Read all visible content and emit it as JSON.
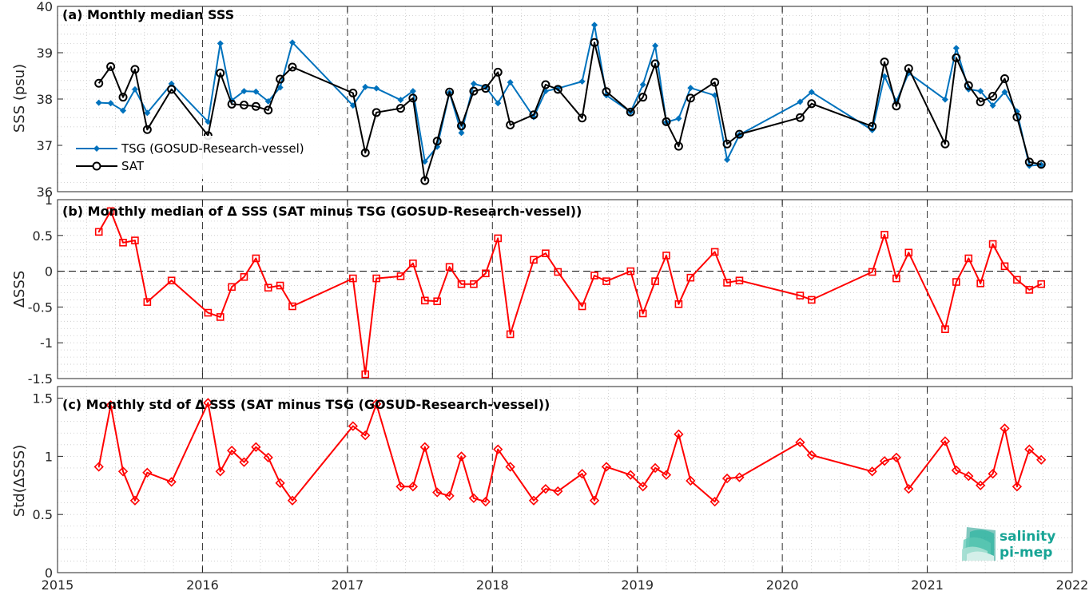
{
  "logo": {
    "line1": "salinity",
    "line2": "pi-mep"
  },
  "chart_data": [
    {
      "type": "line",
      "title": "(a) Monthly median SSS",
      "ylabel": "SSS (psu)",
      "xlim": [
        "2015-01-01",
        "2022-01-01"
      ],
      "ylim": [
        36,
        40
      ],
      "yticks": [
        "36",
        "37",
        "38",
        "39",
        "40"
      ],
      "xticks": [
        "2015",
        "2016",
        "2017",
        "2018",
        "2019",
        "2020",
        "2021",
        "2022"
      ],
      "grid": "minor-dotted",
      "legend_position": "lower-left",
      "series": [
        {
          "name": "TSG (GOSUD-Research-vessel)",
          "color": "#0072BD",
          "marker": "diamond-filled",
          "points": [
            [
              "2015-04-15",
              37.92
            ],
            [
              "2015-05-15",
              37.91
            ],
            [
              "2015-06-15",
              37.75
            ],
            [
              "2015-07-15",
              38.21
            ],
            [
              "2015-08-15",
              37.7
            ],
            [
              "2015-10-15",
              38.33
            ],
            [
              "2016-01-15",
              37.51
            ],
            [
              "2016-02-15",
              39.2
            ],
            [
              "2016-03-15",
              37.97
            ],
            [
              "2016-04-15",
              38.17
            ],
            [
              "2016-05-15",
              38.16
            ],
            [
              "2016-06-15",
              37.95
            ],
            [
              "2016-07-15",
              38.25
            ],
            [
              "2016-08-15",
              39.22
            ],
            [
              "2017-01-15",
              37.86
            ],
            [
              "2017-02-15",
              38.26
            ],
            [
              "2017-03-15",
              38.23
            ],
            [
              "2017-05-15",
              37.98
            ],
            [
              "2017-06-15",
              38.17
            ],
            [
              "2017-07-15",
              36.65
            ],
            [
              "2017-08-15",
              36.97
            ],
            [
              "2017-09-15",
              38.14
            ],
            [
              "2017-10-15",
              37.27
            ],
            [
              "2017-11-15",
              38.33
            ],
            [
              "2017-12-15",
              38.26
            ],
            [
              "2018-01-15",
              37.91
            ],
            [
              "2018-02-15",
              38.36
            ],
            [
              "2018-04-15",
              37.61
            ],
            [
              "2018-05-15",
              38.17
            ],
            [
              "2018-06-15",
              38.23
            ],
            [
              "2018-08-15",
              38.38
            ],
            [
              "2018-09-15",
              39.6
            ],
            [
              "2018-10-15",
              38.08
            ],
            [
              "2018-12-15",
              37.72
            ],
            [
              "2019-01-15",
              38.31
            ],
            [
              "2019-02-15",
              39.15
            ],
            [
              "2019-03-15",
              37.5
            ],
            [
              "2019-04-15",
              37.58
            ],
            [
              "2019-05-15",
              38.24
            ],
            [
              "2019-07-15",
              38.08
            ],
            [
              "2019-08-15",
              36.69
            ],
            [
              "2019-09-15",
              37.23
            ],
            [
              "2020-02-15",
              37.94
            ],
            [
              "2020-03-15",
              38.15
            ],
            [
              "2020-08-15",
              37.33
            ],
            [
              "2020-09-15",
              38.49
            ],
            [
              "2020-10-15",
              37.95
            ],
            [
              "2020-11-15",
              38.56
            ],
            [
              "2021-02-15",
              37.99
            ],
            [
              "2021-03-15",
              39.1
            ],
            [
              "2021-04-15",
              38.21
            ],
            [
              "2021-05-15",
              38.17
            ],
            [
              "2021-06-15",
              37.86
            ],
            [
              "2021-07-15",
              38.15
            ],
            [
              "2021-08-15",
              37.73
            ],
            [
              "2021-09-15",
              36.56
            ],
            [
              "2021-10-15",
              36.58
            ]
          ]
        },
        {
          "name": "SAT",
          "color": "#000000",
          "marker": "circle-open",
          "points": [
            [
              "2015-04-15",
              38.34
            ],
            [
              "2015-05-15",
              38.7
            ],
            [
              "2015-06-15",
              38.04
            ],
            [
              "2015-07-15",
              38.64
            ],
            [
              "2015-08-15",
              37.34
            ],
            [
              "2015-10-15",
              38.21
            ],
            [
              "2016-01-15",
              37.21
            ],
            [
              "2016-02-15",
              38.56
            ],
            [
              "2016-03-15",
              37.89
            ],
            [
              "2016-04-15",
              37.87
            ],
            [
              "2016-05-15",
              37.84
            ],
            [
              "2016-06-15",
              37.76
            ],
            [
              "2016-07-15",
              38.43
            ],
            [
              "2016-08-15",
              38.69
            ],
            [
              "2017-01-15",
              38.13
            ],
            [
              "2017-02-15",
              36.84
            ],
            [
              "2017-03-15",
              37.71
            ],
            [
              "2017-05-15",
              37.8
            ],
            [
              "2017-06-15",
              38.02
            ],
            [
              "2017-07-15",
              36.24
            ],
            [
              "2017-08-15",
              37.09
            ],
            [
              "2017-09-15",
              38.15
            ],
            [
              "2017-10-15",
              37.42
            ],
            [
              "2017-11-15",
              38.17
            ],
            [
              "2017-12-15",
              38.23
            ],
            [
              "2018-01-15",
              38.58
            ],
            [
              "2018-02-15",
              37.44
            ],
            [
              "2018-04-15",
              37.66
            ],
            [
              "2018-05-15",
              38.31
            ],
            [
              "2018-06-15",
              38.21
            ],
            [
              "2018-08-15",
              37.59
            ],
            [
              "2018-09-15",
              39.22
            ],
            [
              "2018-10-15",
              38.16
            ],
            [
              "2018-12-15",
              37.72
            ],
            [
              "2019-01-15",
              38.04
            ],
            [
              "2019-02-15",
              38.76
            ],
            [
              "2019-03-15",
              37.51
            ],
            [
              "2019-04-15",
              36.98
            ],
            [
              "2019-05-15",
              38.02
            ],
            [
              "2019-07-15",
              38.36
            ],
            [
              "2019-08-15",
              37.03
            ],
            [
              "2019-09-15",
              37.24
            ],
            [
              "2020-02-15",
              37.6
            ],
            [
              "2020-03-15",
              37.9
            ],
            [
              "2020-08-15",
              37.41
            ],
            [
              "2020-09-15",
              38.8
            ],
            [
              "2020-10-15",
              37.85
            ],
            [
              "2020-11-15",
              38.66
            ],
            [
              "2021-02-15",
              37.03
            ],
            [
              "2021-03-15",
              38.89
            ],
            [
              "2021-04-15",
              38.29
            ],
            [
              "2021-05-15",
              37.94
            ],
            [
              "2021-06-15",
              38.06
            ],
            [
              "2021-07-15",
              38.44
            ],
            [
              "2021-08-15",
              37.61
            ],
            [
              "2021-09-15",
              36.64
            ],
            [
              "2021-10-15",
              36.59
            ]
          ]
        }
      ]
    },
    {
      "type": "line",
      "title": "(b) Monthly median of Δ SSS (SAT minus TSG (GOSUD-Research-vessel))",
      "ylabel": "ΔSSS",
      "xlim": [
        "2015-01-01",
        "2022-01-01"
      ],
      "ylim": [
        -1.5,
        1
      ],
      "yticks": [
        "-1.5",
        "-1",
        "-0.5",
        "0",
        "0.5",
        "1"
      ],
      "xticks": [
        "2015",
        "2016",
        "2017",
        "2018",
        "2019",
        "2020",
        "2021",
        "2022"
      ],
      "zero_line": "dashed",
      "series": [
        {
          "color": "#FF0000",
          "marker": "square-open",
          "points": [
            [
              "2015-04-15",
              0.55
            ],
            [
              "2015-05-15",
              0.84
            ],
            [
              "2015-06-15",
              0.4
            ],
            [
              "2015-07-15",
              0.43
            ],
            [
              "2015-08-15",
              -0.43
            ],
            [
              "2015-10-15",
              -0.13
            ],
            [
              "2016-01-15",
              -0.58
            ],
            [
              "2016-02-15",
              -0.64
            ],
            [
              "2016-03-15",
              -0.22
            ],
            [
              "2016-04-15",
              -0.08
            ],
            [
              "2016-05-15",
              0.18
            ],
            [
              "2016-06-15",
              -0.23
            ],
            [
              "2016-07-15",
              -0.2
            ],
            [
              "2016-08-15",
              -0.49
            ],
            [
              "2017-01-15",
              -0.1
            ],
            [
              "2017-02-15",
              -1.44
            ],
            [
              "2017-03-15",
              -0.1
            ],
            [
              "2017-05-15",
              -0.07
            ],
            [
              "2017-06-15",
              0.11
            ],
            [
              "2017-07-15",
              -0.41
            ],
            [
              "2017-08-15",
              -0.42
            ],
            [
              "2017-09-15",
              0.06
            ],
            [
              "2017-10-15",
              -0.18
            ],
            [
              "2017-11-15",
              -0.18
            ],
            [
              "2017-12-15",
              -0.03
            ],
            [
              "2018-01-15",
              0.46
            ],
            [
              "2018-02-15",
              -0.88
            ],
            [
              "2018-04-15",
              0.16
            ],
            [
              "2018-05-15",
              0.25
            ],
            [
              "2018-06-15",
              -0.01
            ],
            [
              "2018-08-15",
              -0.49
            ],
            [
              "2018-09-15",
              -0.06
            ],
            [
              "2018-10-15",
              -0.14
            ],
            [
              "2018-12-15",
              0.0
            ],
            [
              "2019-01-15",
              -0.59
            ],
            [
              "2019-02-15",
              -0.14
            ],
            [
              "2019-03-15",
              0.22
            ],
            [
              "2019-04-15",
              -0.46
            ],
            [
              "2019-05-15",
              -0.09
            ],
            [
              "2019-07-15",
              0.27
            ],
            [
              "2019-08-15",
              -0.16
            ],
            [
              "2019-09-15",
              -0.13
            ],
            [
              "2020-02-15",
              -0.34
            ],
            [
              "2020-03-15",
              -0.4
            ],
            [
              "2020-08-15",
              -0.01
            ],
            [
              "2020-09-15",
              0.51
            ],
            [
              "2020-10-15",
              -0.1
            ],
            [
              "2020-11-15",
              0.26
            ],
            [
              "2021-02-15",
              -0.81
            ],
            [
              "2021-03-15",
              -0.15
            ],
            [
              "2021-04-15",
              0.18
            ],
            [
              "2021-05-15",
              -0.17
            ],
            [
              "2021-06-15",
              0.38
            ],
            [
              "2021-07-15",
              0.07
            ],
            [
              "2021-08-15",
              -0.12
            ],
            [
              "2021-09-15",
              -0.26
            ],
            [
              "2021-10-15",
              -0.18
            ]
          ]
        }
      ]
    },
    {
      "type": "line",
      "title": "(c) Monthly std of Δ SSS (SAT minus TSG (GOSUD-Research-vessel))",
      "ylabel": "Std(ΔSSS)",
      "xlim": [
        "2015-01-01",
        "2022-01-01"
      ],
      "ylim": [
        0,
        1.6
      ],
      "yticks": [
        "0",
        "0.5",
        "1",
        "1.5"
      ],
      "xticks": [
        "2015",
        "2016",
        "2017",
        "2018",
        "2019",
        "2020",
        "2021",
        "2022"
      ],
      "series": [
        {
          "color": "#FF0000",
          "marker": "diamond-open",
          "points": [
            [
              "2015-04-15",
              0.91
            ],
            [
              "2015-05-15",
              1.44
            ],
            [
              "2015-06-15",
              0.87
            ],
            [
              "2015-07-15",
              0.62
            ],
            [
              "2015-08-15",
              0.86
            ],
            [
              "2015-10-15",
              0.78
            ],
            [
              "2016-01-15",
              1.46
            ],
            [
              "2016-02-15",
              0.87
            ],
            [
              "2016-03-15",
              1.05
            ],
            [
              "2016-04-15",
              0.95
            ],
            [
              "2016-05-15",
              1.08
            ],
            [
              "2016-06-15",
              0.99
            ],
            [
              "2016-07-15",
              0.77
            ],
            [
              "2016-08-15",
              0.62
            ],
            [
              "2017-01-15",
              1.26
            ],
            [
              "2017-02-15",
              1.18
            ],
            [
              "2017-03-15",
              1.45
            ],
            [
              "2017-05-15",
              0.74
            ],
            [
              "2017-06-15",
              0.74
            ],
            [
              "2017-07-15",
              1.08
            ],
            [
              "2017-08-15",
              0.69
            ],
            [
              "2017-09-15",
              0.66
            ],
            [
              "2017-10-15",
              1.0
            ],
            [
              "2017-11-15",
              0.64
            ],
            [
              "2017-12-15",
              0.61
            ],
            [
              "2018-01-15",
              1.06
            ],
            [
              "2018-02-15",
              0.91
            ],
            [
              "2018-04-15",
              0.62
            ],
            [
              "2018-05-15",
              0.72
            ],
            [
              "2018-06-15",
              0.7
            ],
            [
              "2018-08-15",
              0.85
            ],
            [
              "2018-09-15",
              0.62
            ],
            [
              "2018-10-15",
              0.91
            ],
            [
              "2018-12-15",
              0.84
            ],
            [
              "2019-01-15",
              0.74
            ],
            [
              "2019-02-15",
              0.9
            ],
            [
              "2019-03-15",
              0.84
            ],
            [
              "2019-04-15",
              1.19
            ],
            [
              "2019-05-15",
              0.79
            ],
            [
              "2019-07-15",
              0.61
            ],
            [
              "2019-08-15",
              0.81
            ],
            [
              "2019-09-15",
              0.82
            ],
            [
              "2020-02-15",
              1.12
            ],
            [
              "2020-03-15",
              1.01
            ],
            [
              "2020-08-15",
              0.87
            ],
            [
              "2020-09-15",
              0.96
            ],
            [
              "2020-10-15",
              0.99
            ],
            [
              "2020-11-15",
              0.72
            ],
            [
              "2021-02-15",
              1.13
            ],
            [
              "2021-03-15",
              0.88
            ],
            [
              "2021-04-15",
              0.83
            ],
            [
              "2021-05-15",
              0.75
            ],
            [
              "2021-06-15",
              0.85
            ],
            [
              "2021-07-15",
              1.24
            ],
            [
              "2021-08-15",
              0.74
            ],
            [
              "2021-09-15",
              1.06
            ],
            [
              "2021-10-15",
              0.97
            ]
          ]
        }
      ]
    }
  ]
}
